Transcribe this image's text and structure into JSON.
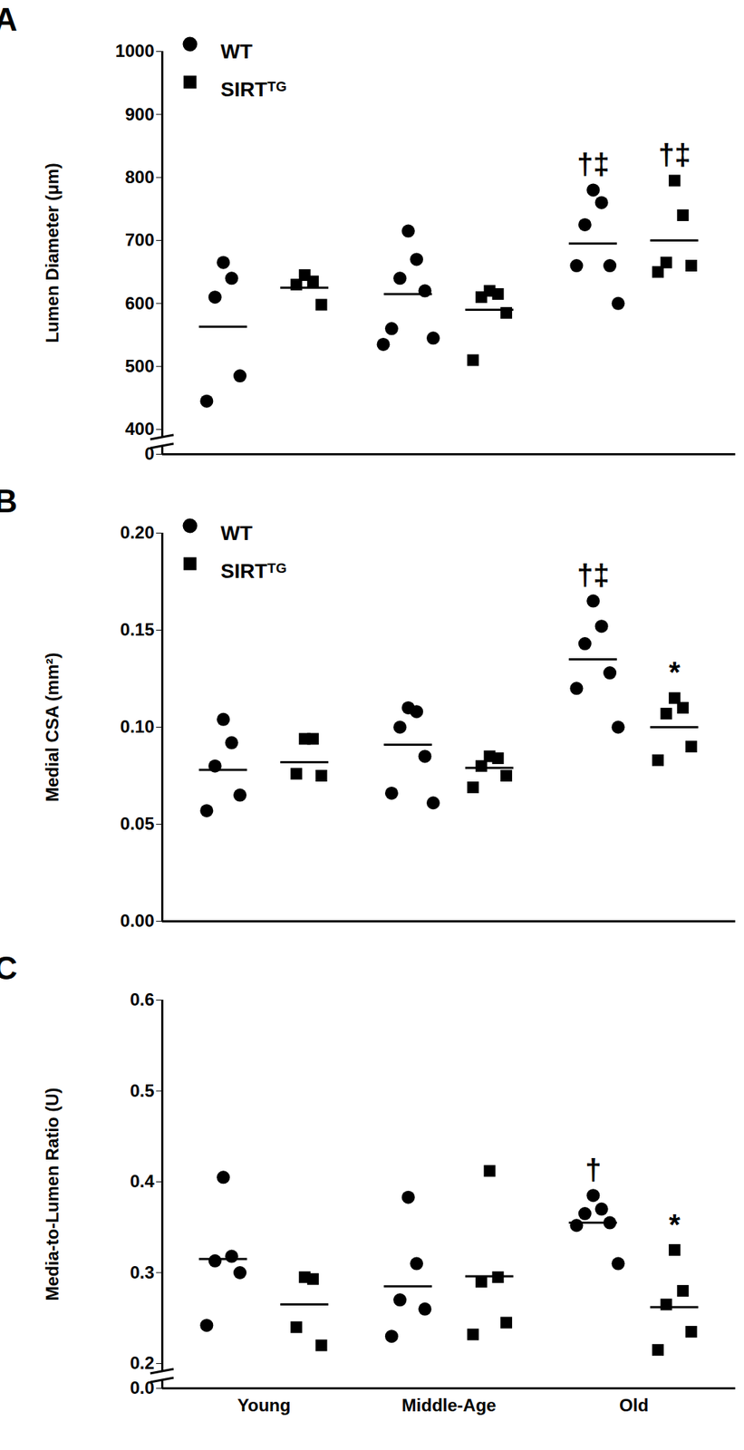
{
  "chart_data": [
    {
      "type": "scatter",
      "title": "A",
      "y_label": "Lumen Diameter (μm)",
      "categories": [
        "Young",
        "Middle-Age",
        "Old"
      ],
      "ylim": [
        0,
        1000
      ],
      "y_break": 400,
      "yticks": [
        0,
        400,
        500,
        600,
        700,
        800,
        900,
        1000
      ],
      "legend": "top-left",
      "tick_labels": "y",
      "series": [
        {
          "name": "WT",
          "marker": "circle",
          "color": "#000000",
          "values": [
            [
              665,
              640,
              610,
              485,
              445
            ],
            [
              715,
              670,
              640,
              620,
              560,
              545,
              535
            ],
            [
              780,
              760,
              725,
              660,
              660,
              600
            ]
          ],
          "means": [
            563,
            615,
            695
          ]
        },
        {
          "name": "SIRTᵀᴳ",
          "marker": "square",
          "color": "#000000",
          "values": [
            [
              645,
              635,
              630,
              598
            ],
            [
              620,
              615,
              610,
              585,
              510
            ],
            [
              795,
              740,
              665,
              660,
              650
            ]
          ],
          "means": [
            625,
            590,
            700
          ]
        }
      ],
      "annotations": [
        {
          "category": "Old",
          "series": "WT",
          "text": "†‡"
        },
        {
          "category": "Old",
          "series": "SIRTᵀᴳ",
          "text": "†‡"
        }
      ]
    },
    {
      "type": "scatter",
      "title": "B",
      "y_label": "Medial CSA (mm²)",
      "categories": [
        "Young",
        "Middle-Age",
        "Old"
      ],
      "ylim": [
        0,
        0.2
      ],
      "yticks": [
        {
          "value": 0,
          "label": "0.00"
        },
        {
          "value": 0.05,
          "label": "0.05"
        },
        {
          "value": 0.1,
          "label": "0.10"
        },
        {
          "value": 0.15,
          "label": "0.15"
        },
        {
          "value": 0.2,
          "label": "0.20"
        }
      ],
      "legend": "top-left",
      "tick_labels": "y",
      "series": [
        {
          "name": "WT",
          "marker": "circle",
          "color": "#000000",
          "values": [
            [
              0.104,
              0.092,
              0.08,
              0.065,
              0.057
            ],
            [
              0.11,
              0.108,
              0.1,
              0.085,
              0.066,
              0.061
            ],
            [
              0.165,
              0.152,
              0.143,
              0.128,
              0.12,
              0.1
            ]
          ],
          "means": [
            0.078,
            0.091,
            0.135
          ]
        },
        {
          "name": "SIRTᵀᴳ",
          "marker": "square",
          "color": "#000000",
          "values": [
            [
              0.094,
              0.094,
              0.076,
              0.075
            ],
            [
              0.085,
              0.084,
              0.08,
              0.075,
              0.069
            ],
            [
              0.115,
              0.11,
              0.107,
              0.09,
              0.083
            ]
          ],
          "means": [
            0.082,
            0.079,
            0.1
          ]
        }
      ],
      "annotations": [
        {
          "category": "Old",
          "series": "WT",
          "text": "†‡"
        },
        {
          "category": "Old",
          "series": "SIRTᵀᴳ",
          "text": "*"
        }
      ]
    },
    {
      "type": "scatter",
      "title": "C",
      "y_label": "Media-to-Lumen Ratio (U)",
      "categories": [
        "Young",
        "Middle-Age",
        "Old"
      ],
      "ylim": [
        0,
        0.6
      ],
      "y_break": 0.2,
      "yticks": [
        {
          "value": 0,
          "label": "0.0"
        },
        {
          "value": 0.2,
          "label": "0.2"
        },
        {
          "value": 0.3,
          "label": "0.3"
        },
        {
          "value": 0.4,
          "label": "0.4"
        },
        {
          "value": 0.5,
          "label": "0.5"
        },
        {
          "value": 0.6,
          "label": "0.6"
        }
      ],
      "series": [
        {
          "name": "WT",
          "marker": "circle",
          "color": "#000000",
          "values": [
            [
              0.405,
              0.318,
              0.313,
              0.3,
              0.242
            ],
            [
              0.383,
              0.31,
              0.27,
              0.26,
              0.23
            ],
            [
              0.385,
              0.37,
              0.365,
              0.355,
              0.352,
              0.31
            ]
          ],
          "means": [
            0.315,
            0.285,
            0.355
          ]
        },
        {
          "name": "SIRTᵀᴳ",
          "marker": "square",
          "color": "#000000",
          "values": [
            [
              0.295,
              0.293,
              0.24,
              0.22
            ],
            [
              0.412,
              0.295,
              0.29,
              0.245,
              0.232
            ],
            [
              0.325,
              0.28,
              0.265,
              0.235,
              0.215
            ]
          ],
          "means": [
            0.265,
            0.296,
            0.262
          ]
        }
      ],
      "annotations": [
        {
          "category": "Old",
          "series": "WT",
          "text": "†"
        },
        {
          "category": "Old",
          "series": "SIRTᵀᴳ",
          "text": "*"
        }
      ]
    }
  ]
}
